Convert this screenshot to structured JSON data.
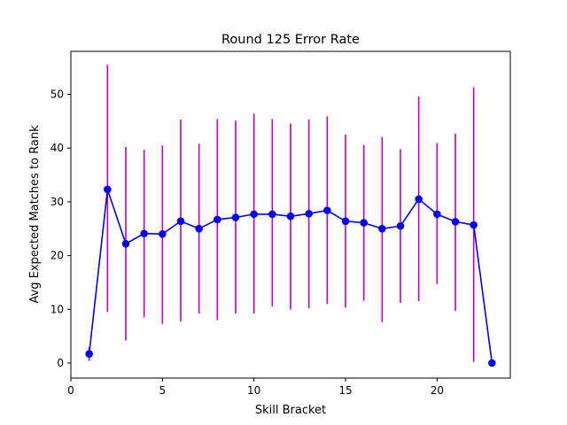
{
  "chart_data": {
    "type": "line",
    "title": "Round 125 Error Rate",
    "xlabel": "Skill Bracket",
    "ylabel": "Avg Expected Matches to Rank",
    "xlim": [
      0.0,
      24.0
    ],
    "ylim": [
      -2.8,
      58.0
    ],
    "xticks": [
      0,
      5,
      10,
      15,
      20
    ],
    "yticks": [
      0,
      10,
      20,
      30,
      40,
      50
    ],
    "grid": false,
    "legend": "none",
    "series": [
      {
        "x": [
          1,
          2,
          3,
          4,
          5,
          6,
          7,
          8,
          9,
          10,
          11,
          12,
          13,
          14,
          15,
          16,
          17,
          18,
          19,
          20,
          21,
          22,
          23
        ],
        "y": [
          1.7,
          32.3,
          22.2,
          24.1,
          24.0,
          26.4,
          25.0,
          26.7,
          27.1,
          27.7,
          27.7,
          27.3,
          27.8,
          28.4,
          26.4,
          26.1,
          25.0,
          25.5,
          30.5,
          27.7,
          26.3,
          25.7,
          0.0
        ],
        "yerr_low": [
          0.4,
          9.5,
          4.2,
          8.5,
          7.3,
          7.7,
          9.2,
          8.0,
          9.2,
          9.2,
          10.5,
          10.0,
          10.2,
          11.0,
          10.3,
          11.6,
          7.6,
          11.2,
          11.5,
          14.7,
          9.7,
          0.2,
          0.0
        ],
        "yerr_high": [
          3.0,
          55.5,
          40.2,
          39.7,
          40.5,
          45.3,
          40.8,
          45.4,
          45.1,
          46.4,
          45.4,
          44.6,
          45.3,
          45.9,
          42.5,
          40.6,
          42.1,
          39.8,
          49.6,
          40.9,
          42.7,
          51.3,
          0.0
        ]
      }
    ],
    "colors": {
      "line": "#0000ff",
      "marker": "#0000ff",
      "errorbar": "#bf00bf"
    }
  }
}
